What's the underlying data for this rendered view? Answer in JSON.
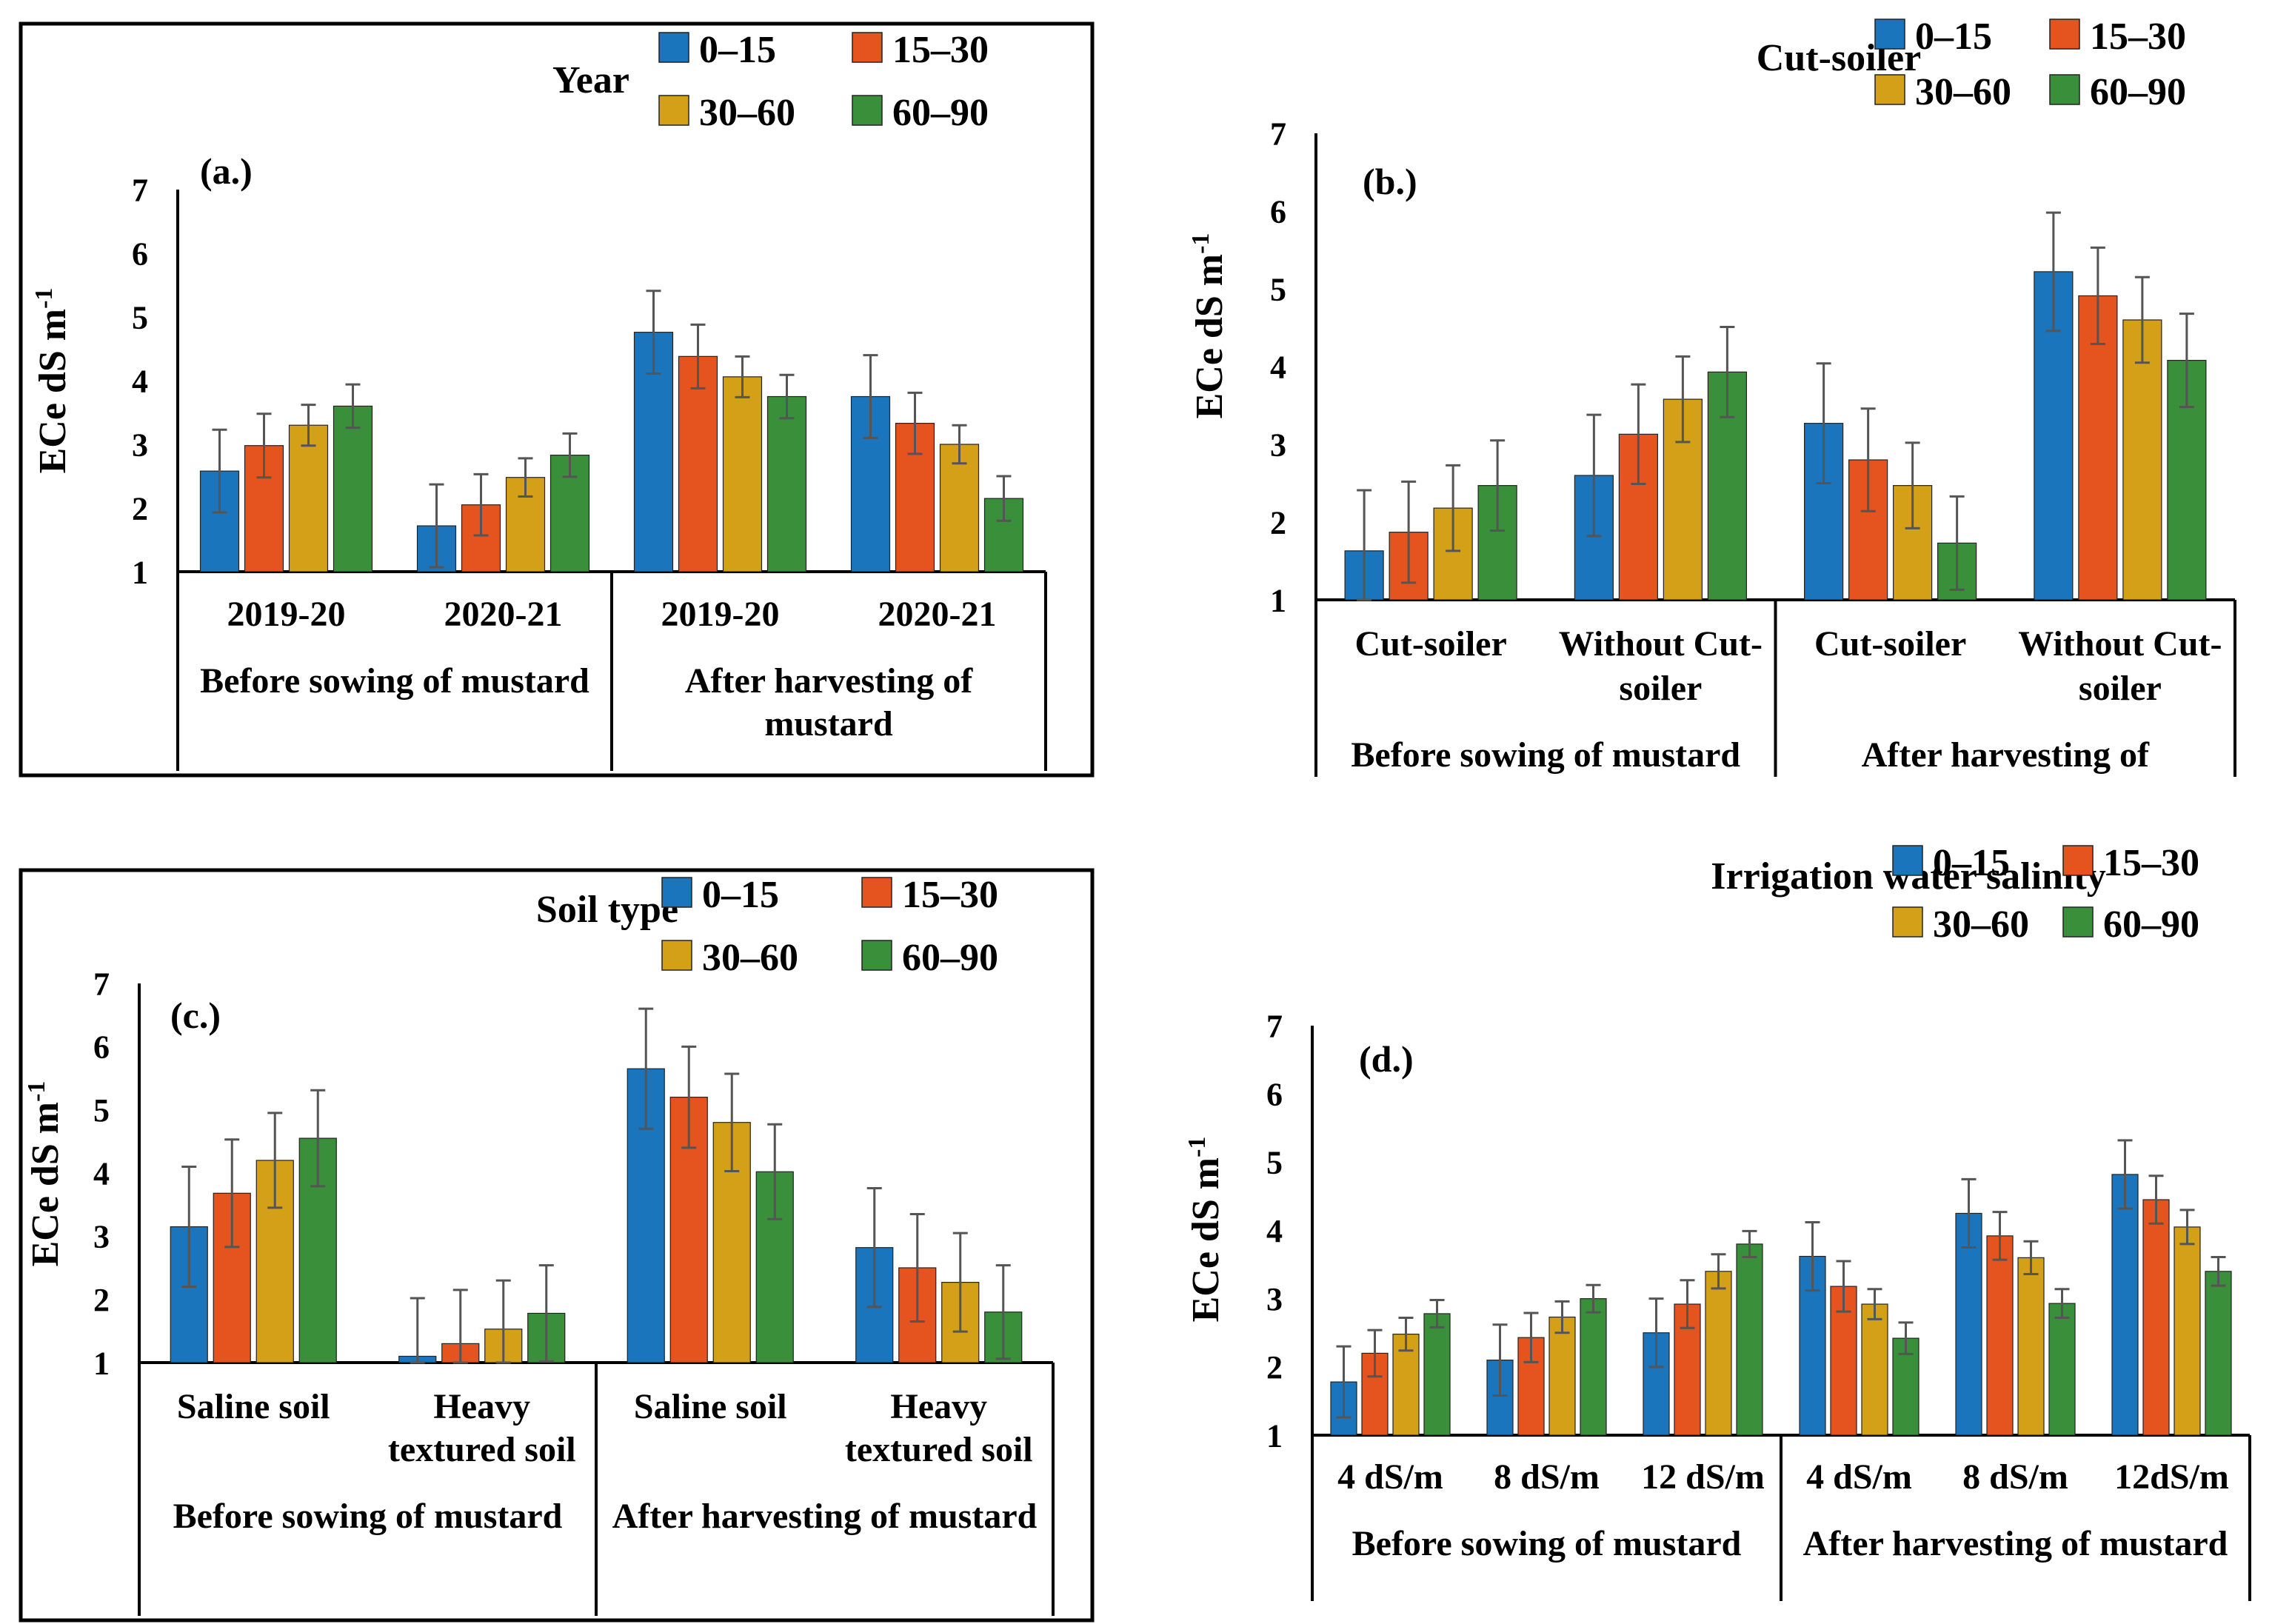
{
  "colors": {
    "d0_15": "#1b75bc",
    "d15_30": "#e5531f",
    "d30_60": "#d4a017",
    "d60_90": "#3a8f3a",
    "err": "#555555",
    "axis": "#000000"
  },
  "chart_data": [
    {
      "id": "a",
      "type": "bar",
      "panel_label": "(a.)",
      "legend_title": "Year",
      "ylabel_main": "ECe dS m",
      "ylabel_sup": "-1",
      "ylim": [
        1,
        7
      ],
      "yticks": [
        1,
        2,
        3,
        4,
        5,
        6,
        7
      ],
      "categories": [
        "2019-20",
        "2020-21",
        "2019-20",
        "2020-21"
      ],
      "category_lines": [
        [
          "2019-20"
        ],
        [
          "2020-21"
        ],
        [
          "2019-20"
        ],
        [
          "2020-21"
        ]
      ],
      "groups": [
        {
          "lines": [
            "Before sowing of mustard"
          ],
          "count": 2
        },
        {
          "lines": [
            "After harvesting of",
            "mustard"
          ],
          "count": 2
        }
      ],
      "series": [
        {
          "name": "0–15",
          "color_key": "d0_15",
          "values": [
            2.58,
            1.72,
            4.76,
            3.75
          ],
          "errors": [
            0.65,
            0.65,
            0.65,
            0.65
          ]
        },
        {
          "name": "15–30",
          "color_key": "d15_30",
          "values": [
            2.98,
            2.05,
            4.38,
            3.33
          ],
          "errors": [
            0.5,
            0.48,
            0.5,
            0.48
          ]
        },
        {
          "name": "30–60",
          "color_key": "d30_60",
          "values": [
            3.3,
            2.48,
            4.06,
            3.0
          ],
          "errors": [
            0.32,
            0.3,
            0.32,
            0.3
          ]
        },
        {
          "name": "60–90",
          "color_key": "d60_90",
          "values": [
            3.6,
            2.83,
            3.75,
            2.15
          ],
          "errors": [
            0.34,
            0.34,
            0.34,
            0.35
          ]
        }
      ]
    },
    {
      "id": "b",
      "type": "bar",
      "panel_label": "(b.)",
      "legend_title": "Cut-soiler",
      "ylabel_main": "ECe dS m",
      "ylabel_sup": "-1",
      "ylim": [
        1,
        7
      ],
      "yticks": [
        1,
        2,
        3,
        4,
        5,
        6,
        7
      ],
      "categories": [
        "Cut-soiler",
        "Without Cut-soiler",
        "Cut-soiler",
        "Without Cut-soiler"
      ],
      "category_lines": [
        [
          "Cut-soiler"
        ],
        [
          "Without Cut-",
          "soiler"
        ],
        [
          "Cut-soiler"
        ],
        [
          "Without Cut-",
          "soiler"
        ]
      ],
      "groups": [
        {
          "lines": [
            "Before sowing of mustard"
          ],
          "count": 2
        },
        {
          "lines": [
            "After harvesting of"
          ],
          "count": 2
        }
      ],
      "series": [
        {
          "name": "0–15",
          "color_key": "d0_15",
          "values": [
            1.63,
            2.6,
            3.27,
            5.22
          ],
          "errors": [
            0.78,
            0.78,
            0.77,
            0.76
          ]
        },
        {
          "name": "15–30",
          "color_key": "d15_30",
          "values": [
            1.87,
            3.13,
            2.8,
            4.91
          ],
          "errors": [
            0.65,
            0.64,
            0.66,
            0.62
          ]
        },
        {
          "name": "30–60",
          "color_key": "d30_60",
          "values": [
            2.18,
            3.58,
            2.47,
            4.6
          ],
          "errors": [
            0.55,
            0.55,
            0.55,
            0.55
          ]
        },
        {
          "name": "60–90",
          "color_key": "d60_90",
          "values": [
            2.47,
            3.93,
            1.73,
            4.08
          ],
          "errors": [
            0.58,
            0.58,
            0.6,
            0.6
          ]
        }
      ]
    },
    {
      "id": "c",
      "type": "bar",
      "panel_label": "(c.)",
      "legend_title": "Soil type",
      "ylabel_main": "ECe dS m",
      "ylabel_sup": "-1",
      "ylim": [
        1,
        7
      ],
      "yticks": [
        1,
        2,
        3,
        4,
        5,
        6,
        7
      ],
      "categories": [
        "Saline soil",
        "Heavy textured soil",
        "Saline soil",
        "Heavy textured soil"
      ],
      "category_lines": [
        [
          "Saline soil"
        ],
        [
          "Heavy",
          "textured soil"
        ],
        [
          "Saline soil"
        ],
        [
          "Heavy",
          "textured soil"
        ]
      ],
      "groups": [
        {
          "lines": [
            "Before sowing of mustard"
          ],
          "count": 2
        },
        {
          "lines": [
            "After harvesting of mustard"
          ],
          "count": 2
        }
      ],
      "series": [
        {
          "name": "0–15",
          "color_key": "d0_15",
          "values": [
            3.15,
            1.1,
            5.65,
            2.82
          ],
          "errors": [
            0.95,
            0.92,
            0.95,
            0.94
          ]
        },
        {
          "name": "15–30",
          "color_key": "d15_30",
          "values": [
            3.68,
            1.3,
            5.2,
            2.5
          ],
          "errors": [
            0.85,
            0.85,
            0.8,
            0.85
          ]
        },
        {
          "name": "30–60",
          "color_key": "d30_60",
          "values": [
            4.2,
            1.53,
            4.8,
            2.27
          ],
          "errors": [
            0.75,
            0.77,
            0.77,
            0.78
          ]
        },
        {
          "name": "60–90",
          "color_key": "d60_90",
          "values": [
            4.55,
            1.78,
            4.02,
            1.8
          ],
          "errors": [
            0.76,
            0.76,
            0.75,
            0.74
          ]
        }
      ]
    },
    {
      "id": "d",
      "type": "bar",
      "panel_label": "(d.)",
      "legend_title": "Irrigation water salinity",
      "ylabel_main": "ECe dS m",
      "ylabel_sup": "-1",
      "ylim": [
        1,
        7
      ],
      "yticks": [
        1,
        2,
        3,
        4,
        5,
        6,
        7
      ],
      "categories": [
        "4 dS/m",
        "8 dS/m",
        "12 dS/m",
        "4 dS/m",
        "8 dS/m",
        "12dS/m"
      ],
      "category_lines": [
        [
          "4 dS/m"
        ],
        [
          "8 dS/m"
        ],
        [
          "12 dS/m"
        ],
        [
          "4 dS/m"
        ],
        [
          "8 dS/m"
        ],
        [
          "12dS/m"
        ]
      ],
      "groups": [
        {
          "lines": [
            "Before sowing of mustard"
          ],
          "count": 3
        },
        {
          "lines": [
            "After harvesting of mustard"
          ],
          "count": 3
        }
      ],
      "series": [
        {
          "name": "0–15",
          "color_key": "d0_15",
          "values": [
            1.78,
            2.1,
            2.5,
            3.62,
            4.25,
            4.82
          ],
          "errors": [
            0.52,
            0.52,
            0.5,
            0.5,
            0.5,
            0.5
          ]
        },
        {
          "name": "15–30",
          "color_key": "d15_30",
          "values": [
            2.2,
            2.43,
            2.92,
            3.18,
            3.92,
            4.45
          ],
          "errors": [
            0.34,
            0.36,
            0.35,
            0.37,
            0.35,
            0.35
          ]
        },
        {
          "name": "30–60",
          "color_key": "d30_60",
          "values": [
            2.48,
            2.73,
            3.4,
            2.92,
            3.6,
            4.05
          ],
          "errors": [
            0.24,
            0.23,
            0.25,
            0.22,
            0.24,
            0.25
          ]
        },
        {
          "name": "60–90",
          "color_key": "d60_90",
          "values": [
            2.78,
            3.0,
            3.8,
            2.42,
            2.93,
            3.4
          ],
          "errors": [
            0.2,
            0.2,
            0.19,
            0.23,
            0.21,
            0.21
          ]
        }
      ]
    }
  ]
}
